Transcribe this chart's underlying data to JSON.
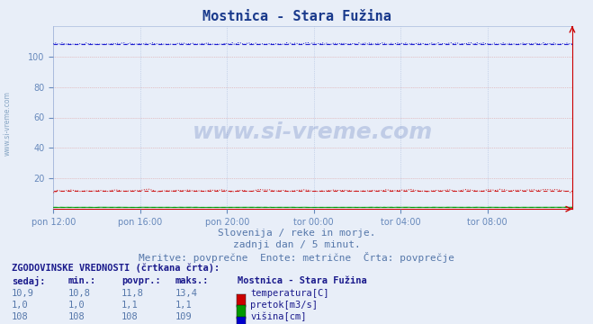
{
  "title": "Mostnica - Stara Fužina",
  "title_color": "#1a3a8c",
  "bg_color": "#e8eef8",
  "plot_bg_color": "#e8eef8",
  "tick_color": "#6688bb",
  "watermark": "www.si-vreme.com",
  "subtitle1": "Slovenija / reke in morje.",
  "subtitle2": "zadnji dan / 5 minut.",
  "subtitle3": "Meritve: povprečne  Enote: metrične  Črta: povprečje",
  "x_tick_labels": [
    "pon 12:00",
    "pon 16:00",
    "pon 20:00",
    "tor 00:00",
    "tor 04:00",
    "tor 08:00"
  ],
  "n_points": 288,
  "ylim": [
    0,
    120
  ],
  "yticks": [
    20,
    40,
    60,
    80,
    100
  ],
  "grid_color_h": "#dd9999",
  "grid_color_v": "#aabbdd",
  "temp_avg": 11.8,
  "temp_max": 13.4,
  "temp_min": 10.8,
  "temp_value": 10.9,
  "temp_color": "#cc0000",
  "pretok_avg": 1.1,
  "pretok_max": 1.1,
  "pretok_min": 1.0,
  "pretok_value": 1.0,
  "pretok_color": "#009900",
  "visina_avg": 108,
  "visina_max": 109,
  "visina_min": 108,
  "visina_value": 108,
  "visina_color": "#0000cc",
  "table_header_color": "#1a1a8c",
  "table_text_color": "#5577aa",
  "legend_label_color": "#1a1a8c",
  "left_text_color": "#7799bb",
  "footnote_color": "#5577aa",
  "spine_color": "#cc0000",
  "axis_arrow_color": "#cc0000"
}
